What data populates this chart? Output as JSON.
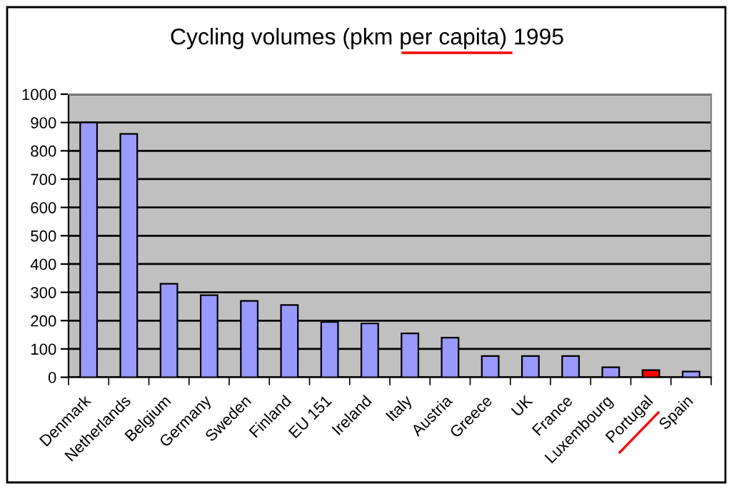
{
  "chart_data": {
    "type": "bar",
    "title": "Cycling volumes (pkm per capita) 1995",
    "categories": [
      "Denmark",
      "Netherlands",
      "Belgium",
      "Germany",
      "Sweden",
      "Finland",
      "EU 151",
      "Ireland",
      "Italy",
      "Austria",
      "Greece",
      "UK",
      "France",
      "Luxembourg",
      "Portugal",
      "Spain"
    ],
    "values": [
      900,
      860,
      330,
      290,
      270,
      255,
      195,
      190,
      155,
      140,
      75,
      75,
      75,
      35,
      25,
      20
    ],
    "colors": [
      "#9999ff",
      "#9999ff",
      "#9999ff",
      "#9999ff",
      "#9999ff",
      "#9999ff",
      "#9999ff",
      "#9999ff",
      "#9999ff",
      "#9999ff",
      "#9999ff",
      "#9999ff",
      "#9999ff",
      "#9999ff",
      "#ff0000",
      "#9999ff"
    ],
    "ylim": [
      0,
      1000
    ],
    "yticks": [
      0,
      100,
      200,
      300,
      400,
      500,
      600,
      700,
      800,
      900,
      1000
    ],
    "grid": "y"
  }
}
